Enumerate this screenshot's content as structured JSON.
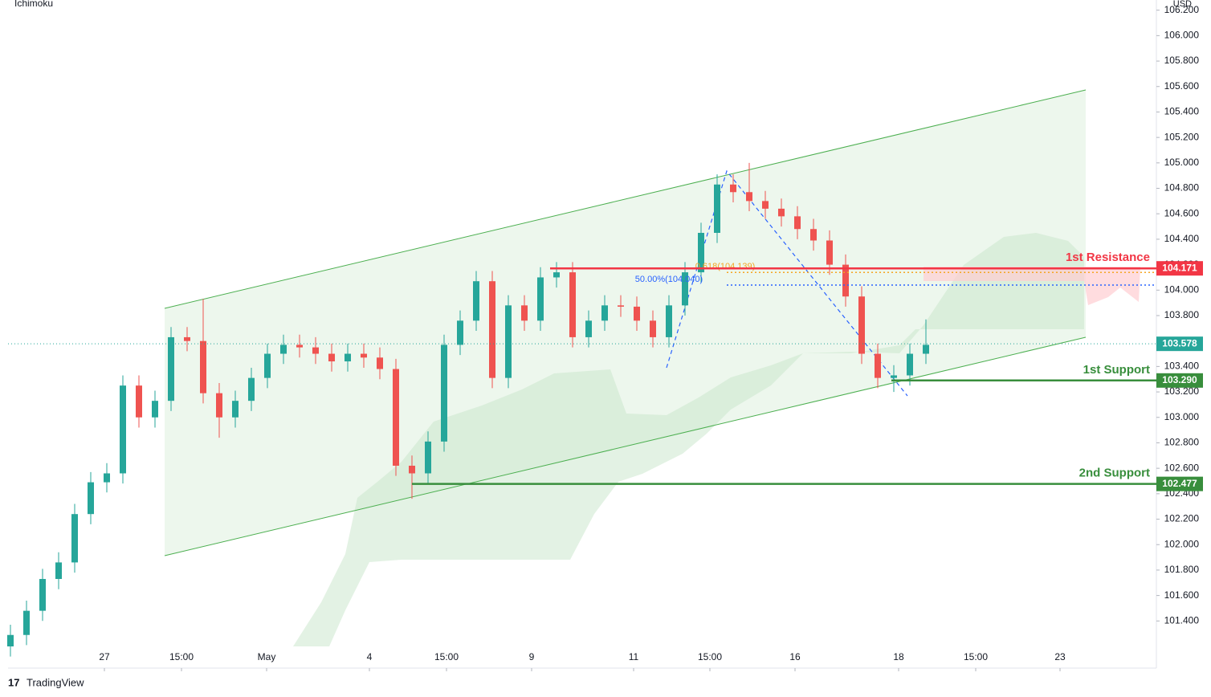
{
  "chart_data": {
    "type": "candlestick",
    "indicator": "Ichimoku",
    "currency": "USD",
    "brand": "TradingView",
    "up_color": "#26a69a",
    "down_color": "#ef5350",
    "open": [
      101.2,
      101.29,
      101.48,
      101.73,
      101.86,
      102.24,
      102.49,
      102.56,
      103.25,
      103.0,
      103.13,
      103.63,
      103.6,
      103.19,
      103.0,
      103.13,
      103.31,
      103.5,
      103.57,
      103.55,
      103.5,
      103.44,
      103.5,
      103.47,
      103.38,
      102.62,
      102.56,
      102.81,
      103.57,
      103.76,
      104.07,
      103.31,
      103.88,
      103.76,
      104.1,
      104.14,
      103.63,
      103.76,
      103.88,
      103.87,
      103.76,
      103.63,
      103.88,
      104.14,
      104.45,
      104.83,
      104.77,
      104.7,
      104.64,
      104.58,
      104.48,
      104.39,
      104.2,
      103.95,
      103.5,
      103.31,
      103.33,
      103.5
    ],
    "high": [
      101.37,
      101.56,
      101.81,
      101.94,
      102.32,
      102.57,
      102.64,
      103.33,
      103.33,
      103.21,
      103.71,
      103.71,
      103.93,
      103.27,
      103.21,
      103.39,
      103.58,
      103.65,
      103.65,
      103.63,
      103.58,
      103.58,
      103.58,
      103.55,
      103.46,
      102.7,
      102.89,
      103.65,
      103.84,
      104.15,
      104.15,
      103.96,
      103.96,
      104.18,
      104.22,
      104.22,
      103.84,
      103.96,
      103.96,
      103.95,
      103.84,
      103.96,
      104.22,
      104.53,
      104.91,
      104.91,
      105.0,
      104.78,
      104.72,
      104.66,
      104.56,
      104.47,
      104.28,
      104.03,
      103.58,
      103.41,
      103.58,
      103.77
    ],
    "low": [
      101.12,
      101.21,
      101.4,
      101.65,
      101.78,
      102.16,
      102.41,
      102.48,
      102.92,
      102.92,
      103.05,
      103.52,
      103.11,
      102.84,
      102.92,
      103.05,
      103.23,
      103.42,
      103.47,
      103.42,
      103.36,
      103.36,
      103.39,
      103.3,
      102.54,
      102.36,
      102.48,
      102.73,
      103.49,
      103.68,
      103.23,
      103.23,
      103.68,
      103.68,
      104.02,
      103.55,
      103.55,
      103.68,
      103.79,
      103.68,
      103.55,
      103.55,
      103.8,
      104.06,
      104.37,
      104.69,
      104.62,
      104.56,
      104.5,
      104.4,
      104.31,
      104.12,
      103.87,
      103.42,
      103.23,
      103.2,
      103.25,
      103.42
    ],
    "close": [
      101.29,
      101.48,
      101.73,
      101.86,
      102.24,
      102.49,
      102.56,
      103.25,
      103.0,
      103.13,
      103.63,
      103.6,
      103.19,
      103.0,
      103.13,
      103.31,
      103.5,
      103.57,
      103.55,
      103.5,
      103.44,
      103.5,
      103.47,
      103.38,
      102.62,
      102.56,
      102.81,
      103.57,
      103.76,
      104.07,
      103.31,
      103.88,
      103.76,
      104.1,
      104.14,
      103.63,
      103.76,
      103.88,
      103.87,
      103.76,
      103.63,
      103.88,
      104.14,
      104.45,
      104.83,
      104.77,
      104.7,
      104.64,
      104.58,
      104.48,
      104.39,
      104.2,
      103.95,
      103.5,
      103.31,
      103.33,
      103.5,
      103.57
    ],
    "xlim": [
      -0.15,
      71.35
    ],
    "xticks": [
      {
        "value": 5.85,
        "label": "27"
      },
      {
        "value": 10.65,
        "label": "15:00"
      },
      {
        "value": 15.95,
        "label": "May"
      },
      {
        "value": 22.35,
        "label": "4"
      },
      {
        "value": 27.15,
        "label": "15:00"
      },
      {
        "value": 32.45,
        "label": "9"
      },
      {
        "value": 38.8,
        "label": "11"
      },
      {
        "value": 43.55,
        "label": "15:00"
      },
      {
        "value": 48.85,
        "label": "16"
      },
      {
        "value": 55.3,
        "label": "18"
      },
      {
        "value": 60.1,
        "label": "15:00"
      },
      {
        "value": 65.35,
        "label": "23"
      }
    ],
    "ylim": [
      101.2,
      106.28
    ],
    "yticks": [
      {
        "value": 101.4,
        "label": "101.400"
      },
      {
        "value": 101.6,
        "label": "101.600"
      },
      {
        "value": 101.8,
        "label": "101.800"
      },
      {
        "value": 102,
        "label": "102.000"
      },
      {
        "value": 102.2,
        "label": "102.200"
      },
      {
        "value": 102.4,
        "label": "102.400"
      },
      {
        "value": 102.6,
        "label": "102.600"
      },
      {
        "value": 102.8,
        "label": "102.800"
      },
      {
        "value": 103,
        "label": "103.000"
      },
      {
        "value": 103.2,
        "label": "103.200"
      },
      {
        "value": 103.4,
        "label": "103.400"
      },
      {
        "value": 103.6,
        "label": "103.600"
      },
      {
        "value": 103.8,
        "label": "103.800"
      },
      {
        "value": 104,
        "label": "104.000"
      },
      {
        "value": 104.2,
        "label": "104.200"
      },
      {
        "value": 104.4,
        "label": "104.400"
      },
      {
        "value": 104.6,
        "label": "104.600"
      },
      {
        "value": 104.8,
        "label": "104.800"
      },
      {
        "value": 105,
        "label": "105.000"
      },
      {
        "value": 105.2,
        "label": "105.200"
      },
      {
        "value": 105.4,
        "label": "105.400"
      },
      {
        "value": 105.6,
        "label": "105.600"
      },
      {
        "value": 105.8,
        "label": "105.800"
      },
      {
        "value": 106,
        "label": "106.000"
      },
      {
        "value": 106.2,
        "label": "106.200"
      }
    ],
    "current_price": {
      "value": 103.578,
      "label": "103.578",
      "color": "#26a69a"
    },
    "levels": [
      {
        "name": "1st Resistance",
        "value": 104.171,
        "label": "104.171",
        "color": "#f23645"
      },
      {
        "name": "1st Support",
        "value": 103.29,
        "label": "103.290",
        "color": "#388e3c"
      },
      {
        "name": "2nd Support",
        "value": 102.477,
        "label": "102.477",
        "color": "#388e3c"
      }
    ],
    "fib": [
      {
        "label": "0.618(104.139)",
        "value": 104.139,
        "color": "#f5a623"
      },
      {
        "label": "50.00%(104.040)",
        "value": 104.04,
        "color": "#2962ff"
      }
    ]
  }
}
